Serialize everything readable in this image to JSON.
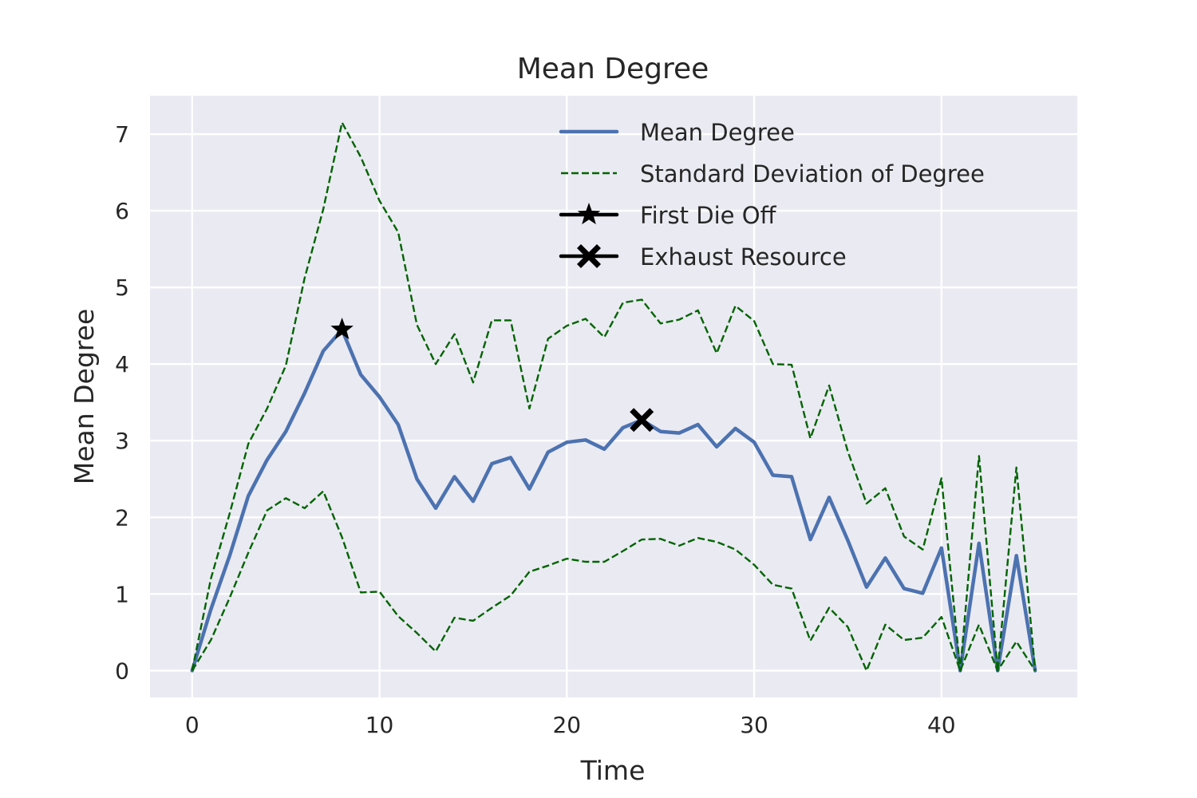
{
  "chart_data": {
    "type": "line",
    "title": "Mean Degree",
    "xlabel": "Time",
    "ylabel": "Mean Degree",
    "xlim": [
      -2.25,
      47.25
    ],
    "ylim": [
      -0.35,
      7.5
    ],
    "xticks": [
      0,
      10,
      20,
      30,
      40
    ],
    "yticks": [
      0,
      1,
      2,
      3,
      4,
      5,
      6,
      7
    ],
    "grid": true,
    "legend_position": "top-right",
    "x": [
      0,
      1,
      2,
      3,
      4,
      5,
      6,
      7,
      8,
      9,
      10,
      11,
      12,
      13,
      14,
      15,
      16,
      17,
      18,
      19,
      20,
      21,
      22,
      23,
      24,
      25,
      26,
      27,
      28,
      29,
      30,
      31,
      32,
      33,
      34,
      35,
      36,
      37,
      38,
      39,
      40,
      41,
      42,
      43,
      44,
      45
    ],
    "series": [
      {
        "name": "Mean Degree",
        "style": "solid",
        "color": "#4c72b0",
        "values": [
          0,
          0.8,
          1.5,
          2.28,
          2.75,
          3.12,
          3.62,
          4.17,
          4.45,
          3.86,
          3.57,
          3.21,
          2.5,
          2.12,
          2.53,
          2.21,
          2.7,
          2.78,
          2.37,
          2.85,
          2.98,
          3.01,
          2.89,
          3.17,
          3.27,
          3.12,
          3.1,
          3.21,
          2.92,
          3.16,
          2.98,
          2.55,
          2.53,
          1.71,
          2.26,
          1.7,
          1.09,
          1.47,
          1.07,
          1.01,
          1.6,
          0,
          1.66,
          0,
          1.5,
          0
        ]
      },
      {
        "name": "Standard Deviation of Degree",
        "style": "dashed",
        "color": "#006400",
        "values": [
          0,
          1.2,
          2.05,
          2.96,
          3.42,
          3.98,
          5.12,
          6.02,
          7.15,
          6.7,
          6.13,
          5.72,
          4.51,
          4.0,
          4.39,
          3.76,
          4.57,
          4.57,
          3.42,
          4.33,
          4.5,
          4.59,
          4.35,
          4.8,
          4.84,
          4.53,
          4.58,
          4.7,
          4.14,
          4.76,
          4.56,
          4.0,
          3.99,
          3.03,
          3.72,
          2.86,
          2.18,
          2.38,
          1.75,
          1.58,
          2.51,
          0,
          2.8,
          0,
          2.65,
          0
        ]
      },
      {
        "name": "",
        "style": "dashed",
        "color": "#006400",
        "values": [
          0,
          0.4,
          0.95,
          1.54,
          2.09,
          2.25,
          2.12,
          2.34,
          1.74,
          1.02,
          1.03,
          0.71,
          0.49,
          0.25,
          0.69,
          0.65,
          0.82,
          0.98,
          1.29,
          1.37,
          1.46,
          1.42,
          1.42,
          1.56,
          1.71,
          1.72,
          1.63,
          1.73,
          1.68,
          1.58,
          1.38,
          1.12,
          1.07,
          0.39,
          0.82,
          0.57,
          0.0,
          0.6,
          0.4,
          0.43,
          0.7,
          0.0,
          0.6,
          0.0,
          0.38,
          0.0
        ]
      }
    ],
    "markers": [
      {
        "name": "First Die Off",
        "shape": "star",
        "x": 8,
        "y": 4.45
      },
      {
        "name": "Exhaust Resource",
        "shape": "x",
        "x": 24,
        "y": 3.27
      }
    ],
    "legend": [
      {
        "label": "Mean Degree",
        "kind": "solid-line",
        "color": "#4c72b0"
      },
      {
        "label": "Standard Deviation of Degree",
        "kind": "dashed-line",
        "color": "#006400"
      },
      {
        "label": "First Die Off",
        "kind": "star-marker",
        "color": "#000000"
      },
      {
        "label": "Exhaust Resource",
        "kind": "x-marker",
        "color": "#000000"
      }
    ],
    "colors": {
      "plot_background": "#eaeaf2",
      "grid": "#ffffff",
      "text": "#262626"
    }
  }
}
